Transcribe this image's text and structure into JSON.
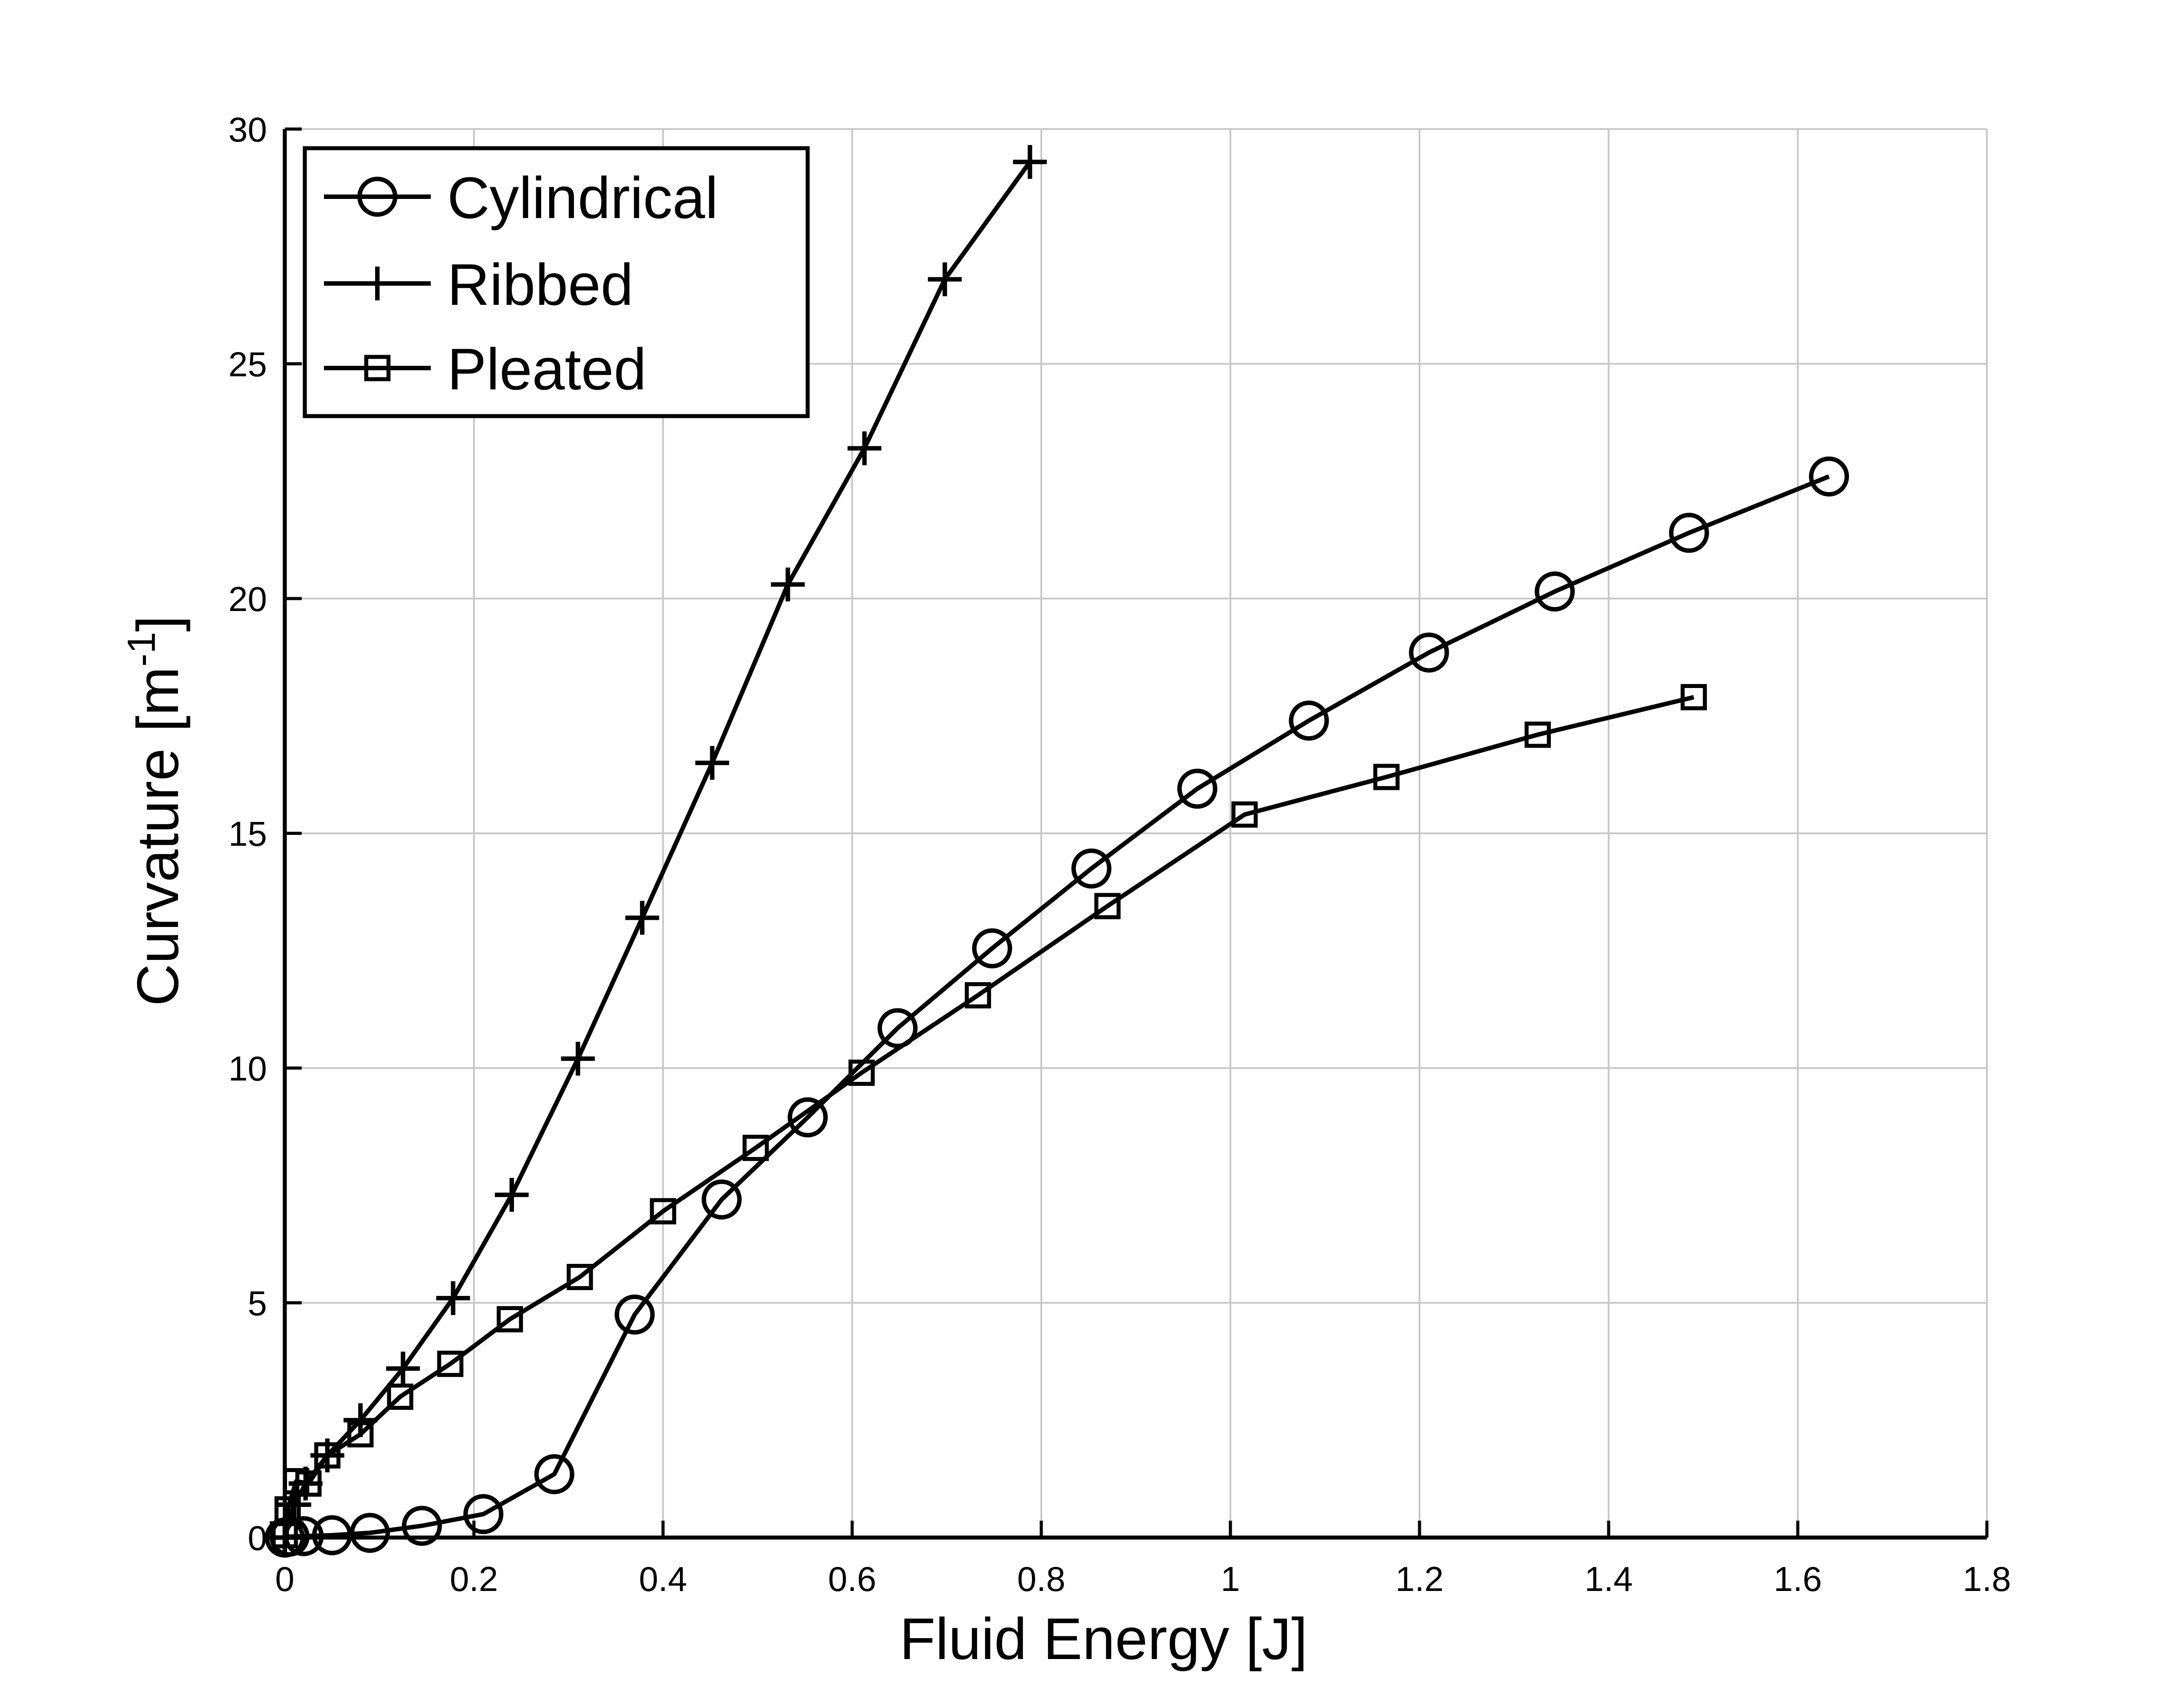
{
  "chart_data": {
    "type": "line",
    "xlabel": "Fluid Energy [J]",
    "ylabel": "Curvature [m",
    "ylabel_sup": "-1",
    "ylabel_end": "]",
    "xlim": [
      0,
      1.8
    ],
    "ylim": [
      0,
      30
    ],
    "xticks": [
      0,
      0.2,
      0.4,
      0.6,
      0.8,
      1,
      1.2,
      1.4,
      1.6,
      1.8
    ],
    "xtick_labels": [
      "0",
      "0.2",
      "0.4",
      "0.6",
      "0.8",
      "1",
      "1.2",
      "1.4",
      "1.6",
      "1.8"
    ],
    "yticks": [
      0,
      5,
      10,
      15,
      20,
      25,
      30
    ],
    "ytick_labels": [
      "0",
      "5",
      "10",
      "15",
      "20",
      "25",
      "30"
    ],
    "grid": true,
    "legend_position": "top-left",
    "series": [
      {
        "name": "Cylindrical",
        "marker": "circle",
        "color": "#000000",
        "points": [
          [
            0,
            0
          ],
          [
            0.005,
            0.02
          ],
          [
            0.02,
            0.03
          ],
          [
            0.05,
            0.05
          ],
          [
            0.09,
            0.1
          ],
          [
            0.145,
            0.25
          ],
          [
            0.21,
            0.5
          ],
          [
            0.285,
            1.35
          ],
          [
            0.37,
            4.75
          ],
          [
            0.462,
            7.2
          ],
          [
            0.553,
            8.95
          ],
          [
            0.648,
            10.85
          ],
          [
            0.748,
            12.55
          ],
          [
            0.853,
            14.25
          ],
          [
            0.965,
            15.95
          ],
          [
            1.083,
            17.4
          ],
          [
            1.21,
            18.85
          ],
          [
            1.343,
            20.15
          ],
          [
            1.485,
            21.4
          ],
          [
            1.633,
            22.6
          ]
        ]
      },
      {
        "name": "Ribbed",
        "marker": "plus",
        "color": "#000000",
        "points": [
          [
            0,
            0
          ],
          [
            0.002,
            0.3
          ],
          [
            0.01,
            0.7
          ],
          [
            0.022,
            1.15
          ],
          [
            0.045,
            1.75
          ],
          [
            0.08,
            2.5
          ],
          [
            0.125,
            3.6
          ],
          [
            0.178,
            5.1
          ],
          [
            0.24,
            7.3
          ],
          [
            0.31,
            10.2
          ],
          [
            0.378,
            13.2
          ],
          [
            0.452,
            16.5
          ],
          [
            0.532,
            20.3
          ],
          [
            0.613,
            23.2
          ],
          [
            0.698,
            26.8
          ],
          [
            0.788,
            29.3
          ]
        ]
      },
      {
        "name": "Pleated",
        "marker": "square",
        "color": "#000000",
        "points": [
          [
            0,
            0.05
          ],
          [
            0.003,
            0.6
          ],
          [
            0.012,
            1.2
          ],
          [
            0.025,
            1.15
          ],
          [
            0.045,
            1.75
          ],
          [
            0.08,
            2.2
          ],
          [
            0.122,
            3.0
          ],
          [
            0.175,
            3.7
          ],
          [
            0.238,
            4.65
          ],
          [
            0.312,
            5.55
          ],
          [
            0.4,
            6.95
          ],
          [
            0.498,
            8.3
          ],
          [
            0.61,
            9.9
          ],
          [
            0.733,
            11.55
          ],
          [
            0.87,
            13.45
          ],
          [
            1.015,
            15.4
          ],
          [
            1.165,
            16.2
          ],
          [
            1.325,
            17.1
          ],
          [
            1.49,
            17.9
          ]
        ]
      }
    ]
  }
}
